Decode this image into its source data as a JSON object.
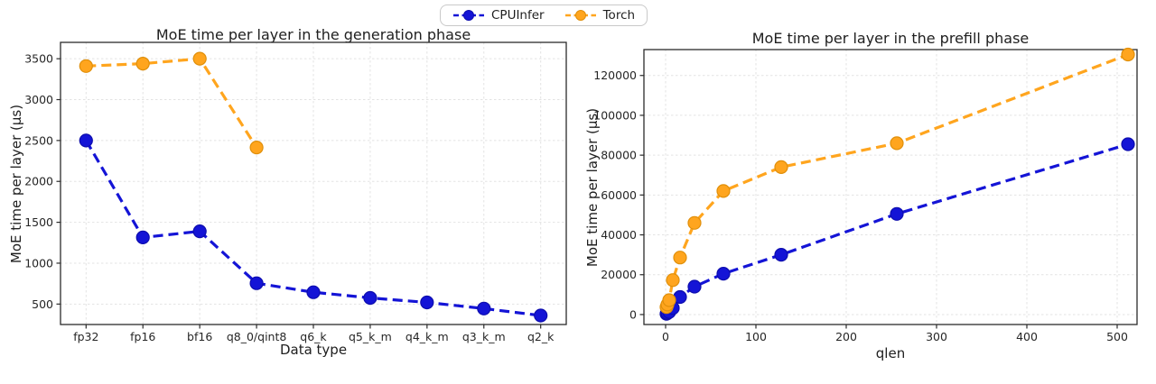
{
  "legend": {
    "items": [
      {
        "label": "CPUInfer",
        "color": "#1414d6",
        "edge": "#0d0dae"
      },
      {
        "label": "Torch",
        "color": "#ffa51e",
        "edge": "#e08f0a"
      }
    ]
  },
  "chart_data": [
    {
      "type": "line",
      "title": "MoE time per layer in the generation phase",
      "xlabel": "Data type",
      "ylabel": "MoE time per layer (µs)",
      "categories": [
        "fp32",
        "fp16",
        "bf16",
        "q8_0/qint8",
        "q6_k",
        "q5_k_m",
        "q4_k_m",
        "q3_k_m",
        "q2_k"
      ],
      "yticks": [
        500,
        1000,
        1500,
        2000,
        2500,
        3000,
        3500
      ],
      "xlim": [
        -0.45,
        8.45
      ],
      "ylim": [
        250,
        3700
      ],
      "grid": true,
      "line_style": "dashed",
      "legend_position": "top-center",
      "series": [
        {
          "name": "CPUInfer",
          "color": "#1414d6",
          "edge": "#0d0dae",
          "values": [
            2500,
            1315,
            1390,
            755,
            645,
            575,
            520,
            445,
            360
          ]
        },
        {
          "name": "Torch",
          "color": "#ffa51e",
          "edge": "#e08f0a",
          "values": [
            3410,
            3440,
            3500,
            2415,
            null,
            null,
            null,
            null,
            null
          ]
        }
      ]
    },
    {
      "type": "line",
      "title": "MoE time per layer in the prefill phase",
      "xlabel": "qlen",
      "ylabel": "MoE time per layer (µs)",
      "x": [
        1,
        2,
        4,
        8,
        16,
        32,
        64,
        128,
        256,
        512
      ],
      "xticks": [
        0,
        100,
        200,
        300,
        400,
        500
      ],
      "yticks": [
        0,
        20000,
        40000,
        60000,
        80000,
        100000,
        120000
      ],
      "xlim": [
        -24,
        522
      ],
      "ylim": [
        -5000,
        133000
      ],
      "grid": true,
      "line_style": "dashed",
      "legend_position": "top-center",
      "series": [
        {
          "name": "CPUInfer",
          "color": "#1414d6",
          "edge": "#0d0dae",
          "values": [
            400,
            700,
            1300,
            3300,
            8800,
            14000,
            20500,
            30000,
            50500,
            85500
          ]
        },
        {
          "name": "Torch",
          "color": "#ffa51e",
          "edge": "#e08f0a",
          "values": [
            3800,
            5000,
            7200,
            17300,
            28600,
            46000,
            62000,
            74000,
            86000,
            130500
          ]
        }
      ]
    }
  ]
}
